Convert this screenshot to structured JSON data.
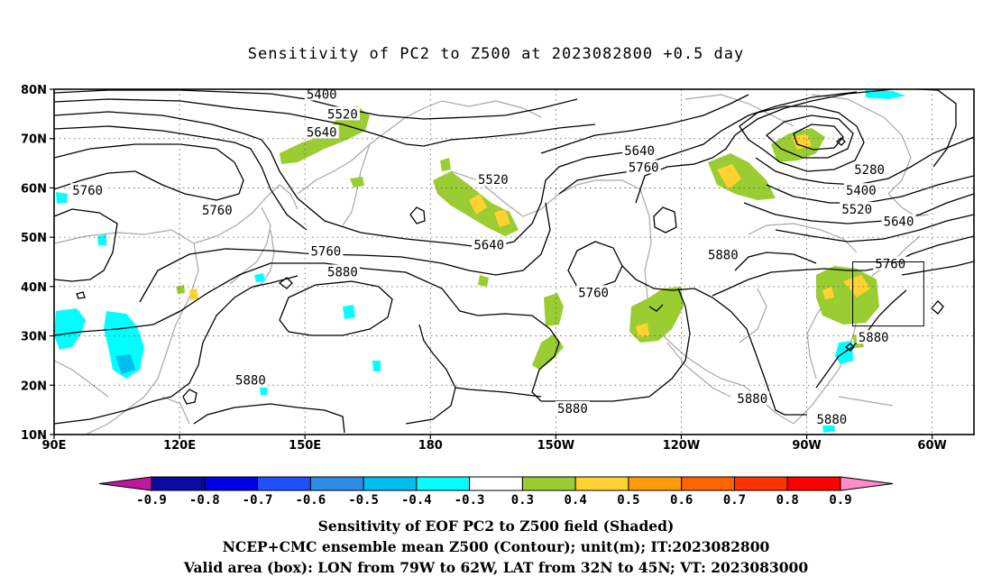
{
  "title": "Sensitivity of PC2 to Z500 at 2023082800 +0.5 day",
  "map": {
    "lon_range": [
      90,
      310
    ],
    "lat_range": [
      10,
      80
    ],
    "lon_ticks": [
      {
        "lon": 90,
        "label": "90E"
      },
      {
        "lon": 120,
        "label": "120E"
      },
      {
        "lon": 150,
        "label": "150E"
      },
      {
        "lon": 180,
        "label": "180"
      },
      {
        "lon": 210,
        "label": "150W"
      },
      {
        "lon": 240,
        "label": "120W"
      },
      {
        "lon": 270,
        "label": "90W"
      },
      {
        "lon": 300,
        "label": "60W"
      }
    ],
    "lat_ticks": [
      {
        "lat": 10,
        "label": "10N"
      },
      {
        "lat": 20,
        "label": "20N"
      },
      {
        "lat": 30,
        "label": "30N"
      },
      {
        "lat": 40,
        "label": "40N"
      },
      {
        "lat": 50,
        "label": "50N"
      },
      {
        "lat": 60,
        "label": "60N"
      },
      {
        "lat": 70,
        "label": "70N"
      },
      {
        "lat": 80,
        "label": "80N"
      }
    ],
    "grid": "dotted",
    "valid_box": {
      "lon_from": 281,
      "lon_to": 298,
      "lat_from": 32,
      "lat_to": 45
    },
    "contour_labels": [
      {
        "text": "5400",
        "lon": 154,
        "lat": 79
      },
      {
        "text": "5520",
        "lon": 159,
        "lat": 75
      },
      {
        "text": "5640",
        "lon": 154,
        "lat": 71.3
      },
      {
        "text": "5760",
        "lon": 98,
        "lat": 59.5
      },
      {
        "text": "5760",
        "lon": 129,
        "lat": 55.5
      },
      {
        "text": "5520",
        "lon": 195,
        "lat": 61.7
      },
      {
        "text": "5640",
        "lon": 230,
        "lat": 67.6
      },
      {
        "text": "5760",
        "lon": 231,
        "lat": 64.2
      },
      {
        "text": "5280",
        "lon": 285,
        "lat": 63.7
      },
      {
        "text": "5400",
        "lon": 283,
        "lat": 59.5
      },
      {
        "text": "5520",
        "lon": 282,
        "lat": 55.7
      },
      {
        "text": "5640",
        "lon": 292,
        "lat": 53.2
      },
      {
        "text": "5640",
        "lon": 194,
        "lat": 48.5
      },
      {
        "text": "5760",
        "lon": 155,
        "lat": 47.2
      },
      {
        "text": "5880",
        "lon": 159,
        "lat": 43
      },
      {
        "text": "5880",
        "lon": 250,
        "lat": 46.5
      },
      {
        "text": "5760",
        "lon": 219,
        "lat": 38.8
      },
      {
        "text": "5760",
        "lon": 290,
        "lat": 44.6
      },
      {
        "text": "5880",
        "lon": 286,
        "lat": 29.7
      },
      {
        "text": "5880",
        "lon": 137,
        "lat": 21.1
      },
      {
        "text": "5880",
        "lon": 214,
        "lat": 15.3
      },
      {
        "text": "5880",
        "lon": 257,
        "lat": 17.3
      },
      {
        "text": "5880",
        "lon": 276,
        "lat": 13.1
      }
    ]
  },
  "colorbar": {
    "labels": [
      "-0.9",
      "-0.8",
      "-0.7",
      "-0.6",
      "-0.5",
      "-0.4",
      "-0.3",
      "0.3",
      "0.4",
      "0.5",
      "0.6",
      "0.7",
      "0.8",
      "0.9"
    ],
    "colors": [
      "#c0189b",
      "#0a0aa0",
      "#0000e6",
      "#1e50ff",
      "#2d8ce6",
      "#00bef0",
      "#00ffff",
      "#ffffff",
      "#9acd32",
      "#ffd232",
      "#ff9a0a",
      "#ff6400",
      "#ff3200",
      "#ff0000",
      "#ff8cc8"
    ]
  },
  "captions": [
    "Sensitivity of EOF PC2 to Z500 field (Shaded)",
    "NCEP+CMC ensemble mean Z500 (Contour); unit(m); IT:2023082800",
    "Valid area (box): LON from 79W to 62W, LAT from 32N to 45N; VT: 2023083000"
  ]
}
